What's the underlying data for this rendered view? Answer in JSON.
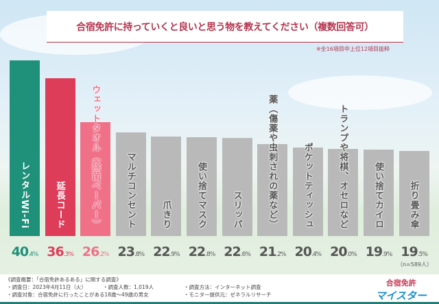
{
  "title": "合宿免許に持っていくと良いと思う物を教えてください（複数回答可）",
  "note": "※全16項目中上位12項目抜粋",
  "sample": "（n=589人）",
  "colors": {
    "first": "#1f9079",
    "second": "#de3d5a",
    "third": "#f07088",
    "rest": "#b9b9b9",
    "title": "#b4354e"
  },
  "chart_data": {
    "type": "bar",
    "title": "合宿免許に持っていくと良いと思う物を教えてください（複数回答可）",
    "categories": [
      "レンタルWi-Fi",
      "延長コード",
      "ウェットタオル（除菌ペーパー）",
      "マルチコンセント",
      "爪きり",
      "使い捨てマスク",
      "スリッパ",
      "薬（傷薬や虫刺されの薬など）",
      "ポケットティッシュ",
      "トランプや将棋、オセロなど",
      "使い捨てカイロ",
      "折り畳み傘"
    ],
    "values": [
      40.4,
      36.3,
      26.2,
      23.8,
      22.9,
      22.8,
      22.6,
      21.2,
      20.4,
      20.0,
      19.9,
      19.5
    ],
    "value_labels": [
      "40.4",
      "36.3",
      "26.2",
      "23.8",
      "22.9",
      "22.8",
      "22.6",
      "21.2",
      "20.4",
      "20.0",
      "19.9",
      "19.5"
    ],
    "unit": "%",
    "ylim": [
      0,
      40.4
    ],
    "grid": false,
    "legend": "none"
  },
  "info": {
    "heading": "《調査概要：「合宿免許あるある」に関する調査》",
    "date": "・調査日：2023年4月11日（火）",
    "count": "・調査人数：1,019人",
    "method": "・調査方法：インターネット調査",
    "target": "・調査対象：合宿免許に行ったことがある18歳～49歳の男女",
    "provider": "・モニター提供元：ゼネラルリサーチ"
  },
  "logo": {
    "line1": "合宿免許",
    "line2": "マイスター"
  }
}
